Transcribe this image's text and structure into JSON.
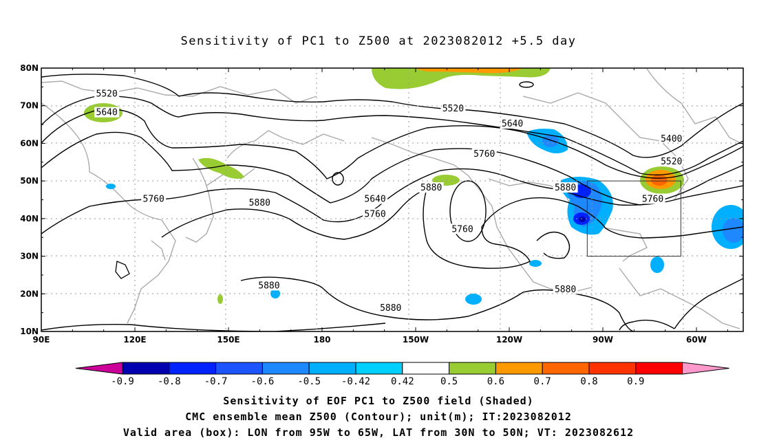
{
  "title": "Sensitivity of PC1 to Z500 at 2023082012 +5.5 day",
  "lat_labels": [
    "80N",
    "70N",
    "60N",
    "50N",
    "40N",
    "30N",
    "20N",
    "10N"
  ],
  "lon_labels": [
    "90E",
    "120E",
    "150E",
    "180",
    "150W",
    "120W",
    "90W",
    "60W"
  ],
  "contour_labels": [
    {
      "text": "5520",
      "lon": 111,
      "lat": 73
    },
    {
      "text": "5640",
      "lon": 111,
      "lat": 68
    },
    {
      "text": "5520",
      "lon": 222,
      "lat": 69
    },
    {
      "text": "5640",
      "lon": 241,
      "lat": 65
    },
    {
      "text": "5760",
      "lon": 232,
      "lat": 57
    },
    {
      "text": "5400",
      "lon": 292,
      "lat": 61
    },
    {
      "text": "5520",
      "lon": 292,
      "lat": 55
    },
    {
      "text": "5760",
      "lon": 126,
      "lat": 45
    },
    {
      "text": "5880",
      "lon": 160,
      "lat": 44
    },
    {
      "text": "5640",
      "lon": 197,
      "lat": 45
    },
    {
      "text": "5760",
      "lon": 197,
      "lat": 41
    },
    {
      "text": "5880",
      "lon": 215,
      "lat": 48
    },
    {
      "text": "5760",
      "lon": 225,
      "lat": 37
    },
    {
      "text": "5880",
      "lon": 258,
      "lat": 48
    },
    {
      "text": "5760",
      "lon": 286,
      "lat": 45
    },
    {
      "text": "5880",
      "lon": 163,
      "lat": 22
    },
    {
      "text": "5880",
      "lon": 258,
      "lat": 21
    },
    {
      "text": "5880",
      "lon": 202,
      "lat": 16
    }
  ],
  "colorbar": {
    "labels": [
      "-0.9",
      "-0.8",
      "-0.7",
      "-0.6",
      "-0.5",
      "-0.42",
      "0.42",
      "0.5",
      "0.6",
      "0.7",
      "0.8",
      "0.9"
    ],
    "colors": [
      "#cc0099",
      "#0000b0",
      "#0022ff",
      "#1c55ff",
      "#1e88ff",
      "#00b0ff",
      "#00d0ff",
      "#ffffff",
      "#99cc33",
      "#ff9900",
      "#ff6600",
      "#ff3300",
      "#ff0000",
      "#ff99cc"
    ]
  },
  "captions": {
    "line1": "Sensitivity of EOF PC1 to Z500 field (Shaded)",
    "line2": "CMC ensemble mean Z500 (Contour); unit(m); IT:2023082012",
    "line3": "Valid area (box): LON from 95W to 65W, LAT from 30N to 50N; VT: 2023082612"
  },
  "valid_area": {
    "lon_min": -95,
    "lon_max": -65,
    "lat_min": 30,
    "lat_max": 50
  }
}
